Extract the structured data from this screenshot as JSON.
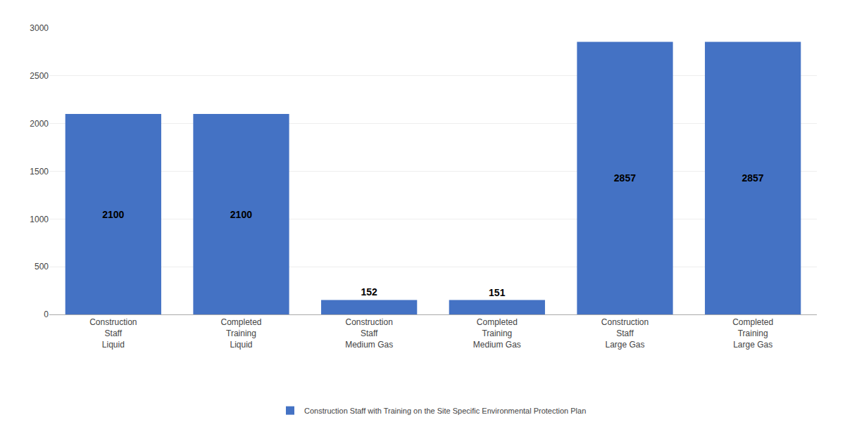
{
  "chart_data": {
    "type": "bar",
    "categories": [
      "Construction\nStaff\nLiquid",
      "Completed\nTraining\nLiquid",
      "Construction\nStaff\nMedium Gas",
      "Completed\nTraining\nMedium Gas",
      "Construction\nStaff\nLarge Gas",
      "Completed\nTraining\nLarge Gas"
    ],
    "series": [
      {
        "name": "Construction Staff with Training on the Site Specific Environmental Protection Plan",
        "color": "#4472C4",
        "values": [
          2100,
          2100,
          152,
          151,
          2857,
          2857
        ]
      }
    ],
    "ylim": [
      0,
      3000
    ],
    "yticks": [
      0,
      500,
      1000,
      1500,
      2000,
      2500,
      3000
    ],
    "grid": true,
    "data_labels": true,
    "legend": "bottom"
  }
}
